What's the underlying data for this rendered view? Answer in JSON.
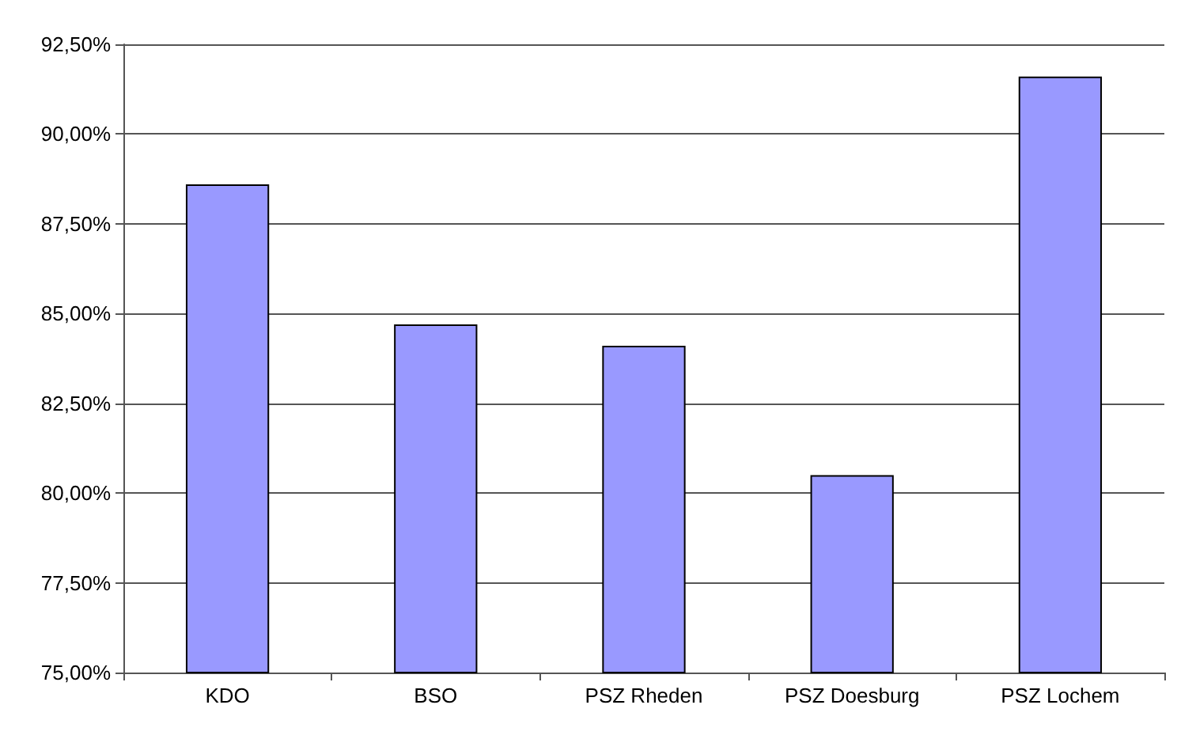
{
  "chart_data": {
    "type": "bar",
    "categories": [
      "KDO",
      "BSO",
      "PSZ Rheden",
      "PSZ Doesburg",
      "PSZ Lochem"
    ],
    "values": [
      88.6,
      84.7,
      84.1,
      80.5,
      91.6
    ],
    "color": "#9999ff",
    "ylim": [
      75,
      92.5
    ],
    "yticks": [
      {
        "value": 75,
        "label": "75,00%"
      },
      {
        "value": 77.5,
        "label": "77,50%"
      },
      {
        "value": 80,
        "label": "80,00%"
      },
      {
        "value": 82.5,
        "label": "82,50%"
      },
      {
        "value": 85,
        "label": "85,00%"
      },
      {
        "value": 87.5,
        "label": "87,50%"
      },
      {
        "value": 90,
        "label": "90,00%"
      },
      {
        "value": 92.5,
        "label": "92,50%"
      }
    ],
    "grid": true
  }
}
